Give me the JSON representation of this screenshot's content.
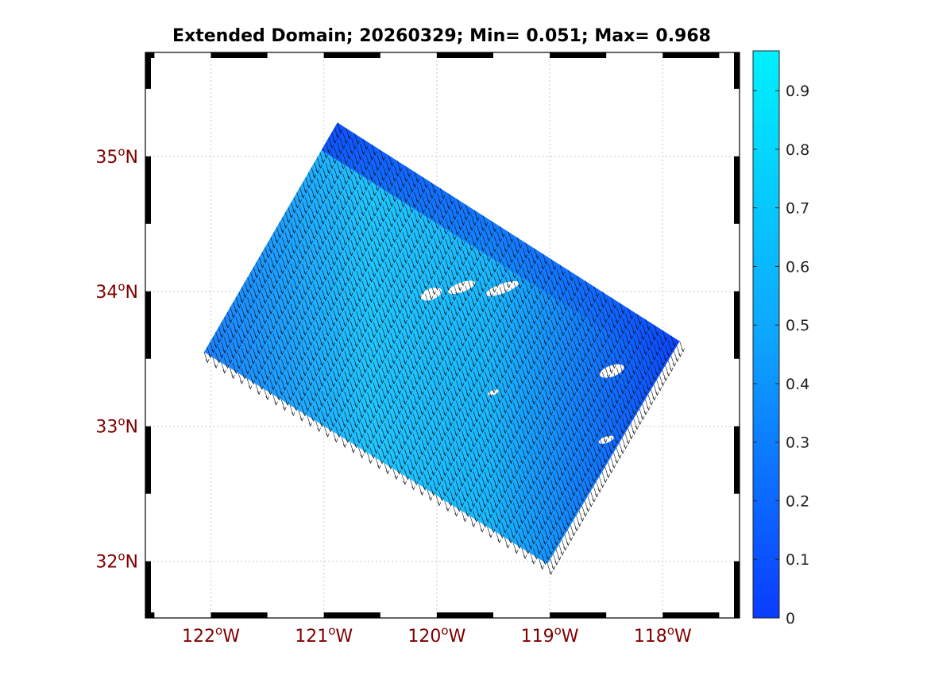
{
  "chart_data": {
    "type": "quiver-map",
    "title": "Extended Domain; 20260329; Min= 0.051; Max= 0.968",
    "min": 0.051,
    "max": 0.968,
    "x_axis": {
      "lim": [
        -122.58,
        -117.32
      ],
      "ticks": [
        {
          "value": -122,
          "deg": "122",
          "hemi": "W"
        },
        {
          "value": -121,
          "deg": "121",
          "hemi": "W"
        },
        {
          "value": -120,
          "deg": "120",
          "hemi": "W"
        },
        {
          "value": -119,
          "deg": "119",
          "hemi": "W"
        },
        {
          "value": -118,
          "deg": "118",
          "hemi": "W"
        }
      ]
    },
    "y_axis": {
      "lim": [
        31.58,
        35.77
      ],
      "ticks": [
        {
          "value": 35,
          "deg": "35",
          "hemi": "N"
        },
        {
          "value": 34,
          "deg": "34",
          "hemi": "N"
        },
        {
          "value": 33,
          "deg": "33",
          "hemi": "N"
        },
        {
          "value": 32,
          "deg": "32",
          "hemi": "N"
        }
      ]
    },
    "grid": true,
    "colorbar": {
      "range": [
        0,
        0.968
      ],
      "ticks": [
        0,
        0.1,
        0.2,
        0.3,
        0.4,
        0.5,
        0.6,
        0.7,
        0.8,
        0.9
      ],
      "tick_labels": [
        "0",
        "0.1",
        "0.2",
        "0.3",
        "0.4",
        "0.5",
        "0.6",
        "0.7",
        "0.8",
        "0.9"
      ],
      "color_low": "#0a3cff",
      "color_high": "#00f0ff"
    },
    "domain_corners": [
      {
        "lon": -122.06,
        "lat": 33.55
      },
      {
        "lon": -119.02,
        "lat": 31.98
      },
      {
        "lon": -117.85,
        "lat": 33.63
      },
      {
        "lon": -120.88,
        "lat": 35.25
      }
    ],
    "current_direction": "south-southeast",
    "axis_tick_color": "#800000"
  }
}
